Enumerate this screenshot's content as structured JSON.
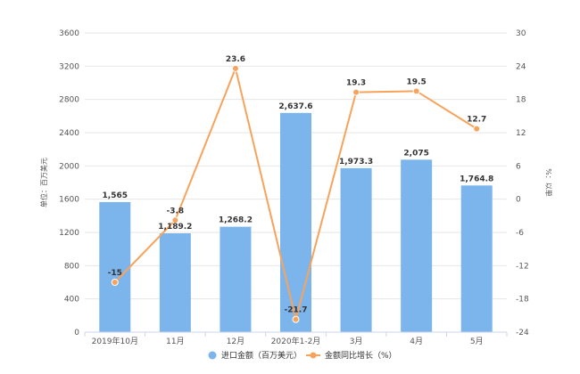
{
  "chart_data": {
    "type": "bar",
    "categories": [
      "2019年10月",
      "11月",
      "12月",
      "2020年1-2月",
      "3月",
      "4月",
      "5月"
    ],
    "series": [
      {
        "name": "进口金额（百万美元）",
        "type": "bar",
        "axis": "left",
        "values": [
          1565,
          1189.2,
          1268.2,
          2637.6,
          1973.3,
          2075,
          1764.8
        ],
        "labels": [
          "1,565",
          "1,189.2",
          "1,268.2",
          "2,637.6",
          "1,973.3",
          "2,075",
          "1,764.8"
        ],
        "color": "#7cb5ec"
      },
      {
        "name": "金额同比增长（%）",
        "type": "line",
        "axis": "right",
        "values": [
          -15,
          -3.8,
          23.6,
          -21.7,
          19.3,
          19.5,
          12.7
        ],
        "labels": [
          "-15",
          "-3.8",
          "23.6",
          "-21.7",
          "19.3",
          "19.5",
          "12.7"
        ],
        "color": "#f7a35c"
      }
    ],
    "ylabel": "单位：百万美元",
    "y2label": "%：以単",
    "ylim": [
      0,
      3600
    ],
    "yticks": [
      "0",
      "400",
      "800",
      "1200",
      "1600",
      "2000",
      "2400",
      "2800",
      "3200",
      "3600"
    ],
    "y2lim": [
      -24,
      30
    ],
    "y2ticks": [
      "-24",
      "-18",
      "-12",
      "-6",
      "0",
      "6",
      "12",
      "18",
      "24",
      "30"
    ],
    "grid": true,
    "legend_position": "bottom"
  }
}
